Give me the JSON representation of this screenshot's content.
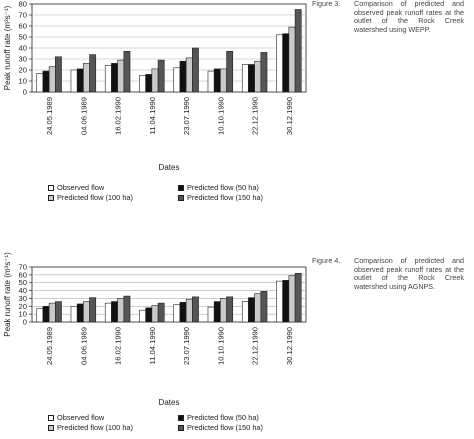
{
  "captions": [
    {
      "label": "Figure 3.",
      "text": "Comparison of predicted and observed peak runoff rates at the outlet of the Rock Creek watershed using WEPP."
    },
    {
      "label": "Figure 4.",
      "text": "Comparison of predicted and observed peak runoff rates at the outlet of the Rock Creek watershed using AGNPS."
    }
  ],
  "colors": {
    "observed": "#ffffff",
    "pred100": "#c9c9c9",
    "pred50": "#111111",
    "pred150": "#555555"
  },
  "chart_data": [
    {
      "type": "bar",
      "title": "",
      "xlabel": "Dates",
      "ylabel": "Peak runoff rate (m³s⁻¹)",
      "ylim": [
        0,
        80
      ],
      "yticks": [
        0,
        10,
        20,
        30,
        40,
        50,
        60,
        70,
        80
      ],
      "grid": true,
      "legend_position": "bottom",
      "categories": [
        "24.05.1989",
        "04.06.1989",
        "16.02.1990",
        "11.04.1990",
        "23.07.1990",
        "10.10.1990",
        "22.12.1990",
        "30.12.1990"
      ],
      "series": [
        {
          "name": "Observed flow",
          "values": [
            17,
            20,
            24,
            15,
            22,
            19,
            25,
            52
          ]
        },
        {
          "name": "Predicted flow (50 ha)",
          "values": [
            19,
            21,
            26,
            16,
            28,
            21,
            25,
            53
          ]
        },
        {
          "name": "Predicted flow (100 ha)",
          "values": [
            23,
            26,
            29,
            21,
            31,
            21,
            28,
            59
          ]
        },
        {
          "name": "Predicted flow (150 ha)",
          "values": [
            32,
            34,
            37,
            29,
            40,
            37,
            36,
            75
          ]
        }
      ]
    },
    {
      "type": "bar",
      "title": "",
      "xlabel": "Dates",
      "ylabel": "Peak runoff rate (m³s⁻¹)",
      "ylim": [
        0,
        70
      ],
      "yticks": [
        0,
        10,
        20,
        30,
        40,
        50,
        60,
        70
      ],
      "grid": true,
      "legend_position": "bottom",
      "categories": [
        "24.05.1989",
        "04.06.1989",
        "16.02.1990",
        "11.04.1990",
        "23.07.1990",
        "10.10.1990",
        "22.12.1990",
        "30.12.1990"
      ],
      "series": [
        {
          "name": "Observed flow",
          "values": [
            17,
            20,
            24,
            15,
            22,
            19,
            26,
            52
          ]
        },
        {
          "name": "Predicted flow (50 ha)",
          "values": [
            20,
            23,
            26,
            18,
            25,
            26,
            31,
            53
          ]
        },
        {
          "name": "Predicted flow (100 ha)",
          "values": [
            24,
            26,
            30,
            21,
            29,
            30,
            36,
            59
          ]
        },
        {
          "name": "Predicted flow (150 ha)",
          "values": [
            26,
            31,
            33,
            24,
            32,
            32,
            39,
            62
          ]
        }
      ]
    }
  ]
}
